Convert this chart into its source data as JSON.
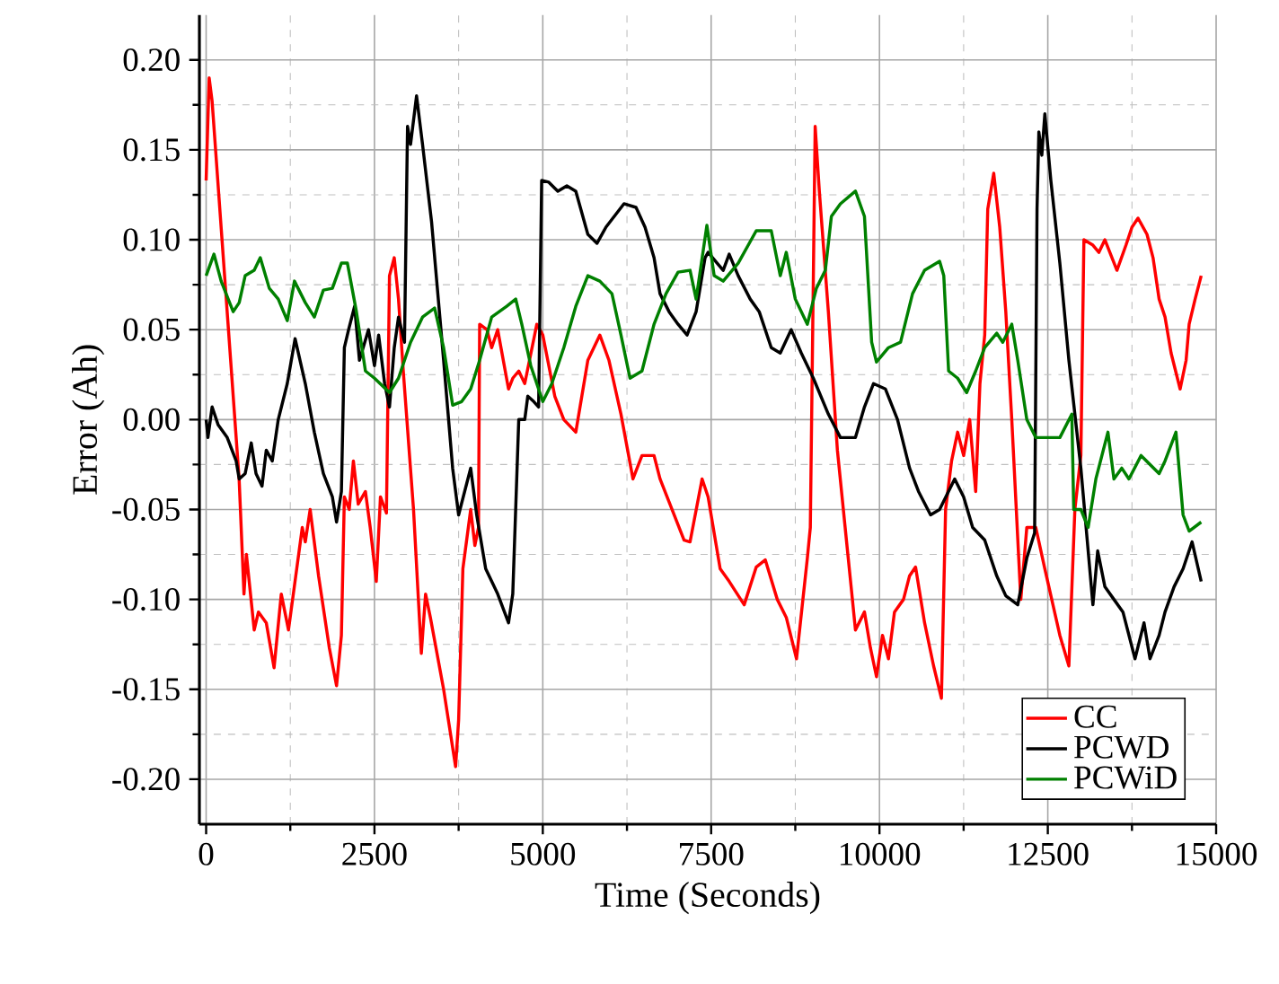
{
  "chart_data": {
    "type": "line",
    "xlabel": "Time (Seconds)",
    "ylabel": "Error (Ah)",
    "xlim": [
      -100,
      15000
    ],
    "ylim": [
      -0.225,
      0.225
    ],
    "xticks": [
      0,
      2500,
      5000,
      7500,
      10000,
      12500,
      15000
    ],
    "yticks": [
      {
        "value": -0.2,
        "label": "-0.20"
      },
      {
        "value": -0.15,
        "label": "-0.15"
      },
      {
        "value": -0.1,
        "label": "-0.10"
      },
      {
        "value": -0.05,
        "label": "-0.05"
      },
      {
        "value": 0,
        "label": "0.00"
      },
      {
        "value": 0.05,
        "label": "0.05"
      },
      {
        "value": 0.1,
        "label": "0.10"
      },
      {
        "value": 0.15,
        "label": "0.15"
      },
      {
        "value": 0.2,
        "label": "0.20"
      }
    ],
    "grid": true,
    "legend": "bottom right",
    "marker": "none",
    "line_style": "solid",
    "series": [
      {
        "name": "CC",
        "color": "#ff0000",
        "x": [
          0,
          45,
          89,
          490,
          562,
          598,
          714,
          777,
          893,
          1009,
          1116,
          1223,
          1295,
          1428,
          1473,
          1545,
          1670,
          1830,
          1937,
          2009,
          2053,
          2125,
          2187,
          2259,
          2366,
          2437,
          2527,
          2589,
          2678,
          2723,
          2794,
          2857,
          2928,
          3080,
          3196,
          3259,
          3330,
          3527,
          3705,
          3750,
          3813,
          3929,
          3991,
          4045,
          4062,
          4170,
          4241,
          4330,
          4491,
          4554,
          4643,
          4732,
          4911,
          5000,
          5178,
          5312,
          5490,
          5669,
          5847,
          5982,
          6161,
          6339,
          6473,
          6652,
          6741,
          6919,
          7098,
          7187,
          7366,
          7455,
          7634,
          7768,
          7991,
          8170,
          8304,
          8482,
          8616,
          8768,
          8929,
          8973,
          9045,
          9107,
          9241,
          9375,
          9509,
          9598,
          9643,
          9777,
          9866,
          9956,
          10045,
          10134,
          10223,
          10357,
          10446,
          10536,
          10670,
          10804,
          10920,
          10982,
          11071,
          11161,
          11250,
          11340,
          11429,
          11492,
          11563,
          11608,
          11697,
          11786,
          11876,
          11965,
          12099,
          12188,
          12322,
          12456,
          12679,
          12813,
          12902,
          12991,
          13036,
          13170,
          13259,
          13348,
          13527,
          13661,
          13750,
          13840,
          13973,
          14063,
          14153,
          14241,
          14331,
          14465,
          14554,
          14599,
          14688,
          14778
        ],
        "values": [
          0.133,
          0.19,
          0.177,
          -0.033,
          -0.097,
          -0.075,
          -0.117,
          -0.107,
          -0.113,
          -0.138,
          -0.097,
          -0.117,
          -0.097,
          -0.06,
          -0.068,
          -0.05,
          -0.087,
          -0.127,
          -0.148,
          -0.12,
          -0.043,
          -0.05,
          -0.023,
          -0.047,
          -0.04,
          -0.06,
          -0.09,
          -0.043,
          -0.052,
          0.08,
          0.09,
          0.067,
          0.027,
          -0.05,
          -0.13,
          -0.097,
          -0.11,
          -0.15,
          -0.193,
          -0.167,
          -0.083,
          -0.05,
          -0.07,
          -0.06,
          0.053,
          0.05,
          0.04,
          0.05,
          0.017,
          0.023,
          0.027,
          0.02,
          0.053,
          0.047,
          0.013,
          0,
          -0.007,
          0.033,
          0.047,
          0.033,
          0.003,
          -0.033,
          -0.02,
          -0.02,
          -0.033,
          -0.05,
          -0.067,
          -0.068,
          -0.033,
          -0.043,
          -0.083,
          -0.09,
          -0.103,
          -0.082,
          -0.078,
          -0.1,
          -0.11,
          -0.133,
          -0.077,
          -0.06,
          0.163,
          0.127,
          0.06,
          -0.017,
          -0.067,
          -0.1,
          -0.117,
          -0.107,
          -0.127,
          -0.143,
          -0.12,
          -0.133,
          -0.107,
          -0.1,
          -0.087,
          -0.082,
          -0.113,
          -0.137,
          -0.155,
          -0.05,
          -0.023,
          -0.007,
          -0.02,
          0,
          -0.04,
          0.02,
          0.047,
          0.117,
          0.137,
          0.107,
          0.06,
          0,
          -0.1,
          -0.06,
          -0.06,
          -0.083,
          -0.12,
          -0.137,
          -0.05,
          -0.02,
          0.1,
          0.097,
          0.093,
          0.1,
          0.083,
          0.097,
          0.107,
          0.112,
          0.103,
          0.09,
          0.067,
          0.057,
          0.037,
          0.017,
          0.033,
          0.053,
          0.067,
          0.08
        ]
      },
      {
        "name": "PCWD",
        "color": "#000000",
        "x": [
          0,
          27,
          89,
          179,
          313,
          446,
          491,
          580,
          670,
          741,
          830,
          893,
          982,
          1071,
          1205,
          1321,
          1473,
          1607,
          1741,
          1875,
          1937,
          2009,
          2053,
          2116,
          2205,
          2277,
          2411,
          2500,
          2562,
          2651,
          2723,
          2794,
          2857,
          2946,
          2991,
          3036,
          3125,
          3214,
          3348,
          3527,
          3661,
          3750,
          3839,
          3929,
          4018,
          4152,
          4330,
          4491,
          4554,
          4643,
          4732,
          4777,
          4866,
          4938,
          4983,
          5089,
          5223,
          5357,
          5490,
          5669,
          5804,
          5938,
          6205,
          6384,
          6518,
          6652,
          6741,
          6875,
          7009,
          7143,
          7277,
          7410,
          7455,
          7589,
          7679,
          7768,
          7902,
          8080,
          8214,
          8393,
          8527,
          8688,
          8839,
          9018,
          9241,
          9420,
          9643,
          9777,
          9911,
          10089,
          10268,
          10447,
          10580,
          10759,
          10893,
          11117,
          11250,
          11384,
          11563,
          11742,
          11876,
          12054,
          12188,
          12304,
          12340,
          12367,
          12411,
          12456,
          12545,
          12679,
          12813,
          12991,
          13170,
          13241,
          13348,
          13482,
          13616,
          13795,
          13929,
          14018,
          14153,
          14241,
          14375,
          14509,
          14643,
          14778
        ],
        "values": [
          0,
          -0.01,
          0.007,
          -0.003,
          -0.01,
          -0.023,
          -0.033,
          -0.03,
          -0.013,
          -0.03,
          -0.037,
          -0.017,
          -0.023,
          0,
          0.02,
          0.045,
          0.02,
          -0.007,
          -0.03,
          -0.043,
          -0.057,
          -0.04,
          0.04,
          0.05,
          0.063,
          0.033,
          0.05,
          0.03,
          0.047,
          0.02,
          0.007,
          0.04,
          0.057,
          0.043,
          0.163,
          0.153,
          0.18,
          0.153,
          0.11,
          0.033,
          -0.027,
          -0.053,
          -0.04,
          -0.027,
          -0.053,
          -0.083,
          -0.097,
          -0.113,
          -0.097,
          0,
          0,
          0.013,
          0.01,
          0.007,
          0.133,
          0.132,
          0.127,
          0.13,
          0.127,
          0.103,
          0.098,
          0.107,
          0.12,
          0.118,
          0.107,
          0.09,
          0.07,
          0.06,
          0.053,
          0.047,
          0.06,
          0.09,
          0.093,
          0.087,
          0.083,
          0.092,
          0.08,
          0.067,
          0.06,
          0.04,
          0.037,
          0.05,
          0.037,
          0.023,
          0.003,
          -0.01,
          -0.01,
          0.007,
          0.02,
          0.017,
          0,
          -0.027,
          -0.04,
          -0.053,
          -0.05,
          -0.033,
          -0.043,
          -0.06,
          -0.067,
          -0.087,
          -0.098,
          -0.103,
          -0.077,
          -0.063,
          0.117,
          0.16,
          0.147,
          0.17,
          0.133,
          0.087,
          0.033,
          -0.027,
          -0.103,
          -0.073,
          -0.093,
          -0.1,
          -0.107,
          -0.133,
          -0.113,
          -0.133,
          -0.12,
          -0.107,
          -0.093,
          -0.083,
          -0.068,
          -0.09
        ]
      },
      {
        "name": "PCWiD",
        "color": "#008000",
        "x": [
          0,
          116,
          223,
          402,
          491,
          580,
          714,
          804,
          938,
          1071,
          1205,
          1312,
          1473,
          1607,
          1741,
          1875,
          2009,
          2098,
          2232,
          2366,
          2500,
          2723,
          2857,
          3036,
          3214,
          3393,
          3527,
          3661,
          3795,
          3929,
          4062,
          4241,
          4464,
          4598,
          4688,
          4821,
          5000,
          5134,
          5312,
          5490,
          5669,
          5847,
          6027,
          6161,
          6295,
          6473,
          6652,
          6830,
          7009,
          7187,
          7277,
          7437,
          7545,
          7679,
          7902,
          8170,
          8393,
          8527,
          8616,
          8750,
          8929,
          9063,
          9196,
          9286,
          9420,
          9643,
          9777,
          9884,
          9956,
          10134,
          10313,
          10491,
          10670,
          10893,
          10955,
          11027,
          11161,
          11295,
          11429,
          11563,
          11742,
          11831,
          11965,
          12054,
          12188,
          12322,
          12500,
          12679,
          12857,
          12885,
          12991,
          13099,
          13214,
          13393,
          13482,
          13598,
          13705,
          13885,
          14153,
          14241,
          14403,
          14509,
          14599,
          14778
        ],
        "values": [
          0.08,
          0.092,
          0.077,
          0.06,
          0.065,
          0.08,
          0.083,
          0.09,
          0.073,
          0.067,
          0.055,
          0.077,
          0.065,
          0.057,
          0.072,
          0.073,
          0.087,
          0.087,
          0.06,
          0.027,
          0.023,
          0.015,
          0.023,
          0.043,
          0.057,
          0.062,
          0.04,
          0.008,
          0.01,
          0.017,
          0.033,
          0.057,
          0.063,
          0.067,
          0.053,
          0.03,
          0.01,
          0.02,
          0.04,
          0.063,
          0.08,
          0.077,
          0.07,
          0.047,
          0.023,
          0.027,
          0.053,
          0.07,
          0.082,
          0.083,
          0.067,
          0.108,
          0.08,
          0.077,
          0.087,
          0.105,
          0.105,
          0.08,
          0.093,
          0.067,
          0.053,
          0.073,
          0.083,
          0.113,
          0.12,
          0.127,
          0.113,
          0.043,
          0.032,
          0.04,
          0.043,
          0.07,
          0.083,
          0.088,
          0.08,
          0.027,
          0.023,
          0.015,
          0.027,
          0.04,
          0.048,
          0.043,
          0.053,
          0.033,
          0,
          -0.01,
          -0.01,
          -0.01,
          0.003,
          -0.05,
          -0.05,
          -0.06,
          -0.033,
          -0.007,
          -0.033,
          -0.027,
          -0.033,
          -0.02,
          -0.03,
          -0.023,
          -0.007,
          -0.053,
          -0.062,
          -0.057
        ]
      }
    ]
  }
}
